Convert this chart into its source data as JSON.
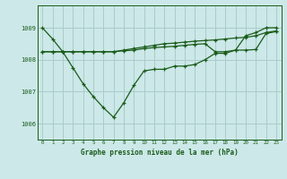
{
  "title": "Graphe pression niveau de la mer (hPa)",
  "bg_color": "#cce8e8",
  "grid_color": "#aacccc",
  "line_color": "#1a5c1a",
  "x_labels": [
    "0",
    "1",
    "2",
    "3",
    "4",
    "5",
    "6",
    "7",
    "8",
    "9",
    "10",
    "11",
    "12",
    "13",
    "14",
    "15",
    "16",
    "17",
    "18",
    "19",
    "20",
    "21",
    "22",
    "23"
  ],
  "ylim": [
    1005.5,
    1009.7
  ],
  "yticks": [
    1006,
    1007,
    1008,
    1009
  ],
  "series_dip": [
    1009.0,
    1008.65,
    1008.25,
    1007.75,
    1007.25,
    1006.85,
    1006.5,
    1006.2,
    1006.65,
    1007.2,
    1007.65,
    1007.7,
    1007.7,
    1007.8,
    1007.8,
    1007.85,
    1008.0,
    1008.2,
    1008.2,
    1008.3,
    1008.75,
    1008.85,
    1009.0,
    1009.0
  ],
  "series_flat": [
    1008.25,
    1008.25,
    1008.25,
    1008.25,
    1008.25,
    1008.25,
    1008.25,
    1008.25,
    1008.28,
    1008.3,
    1008.35,
    1008.38,
    1008.4,
    1008.42,
    1008.45,
    1008.48,
    1008.5,
    1008.25,
    1008.25,
    1008.3,
    1008.3,
    1008.32,
    1008.82,
    1008.88
  ],
  "series_mid": [
    1008.25,
    1008.25,
    1008.25,
    1008.25,
    1008.25,
    1008.25,
    1008.25,
    1008.25,
    1008.3,
    1008.35,
    1008.4,
    1008.45,
    1008.5,
    1008.52,
    1008.55,
    1008.58,
    1008.6,
    1008.62,
    1008.65,
    1008.68,
    1008.7,
    1008.75,
    1008.85,
    1008.9
  ]
}
